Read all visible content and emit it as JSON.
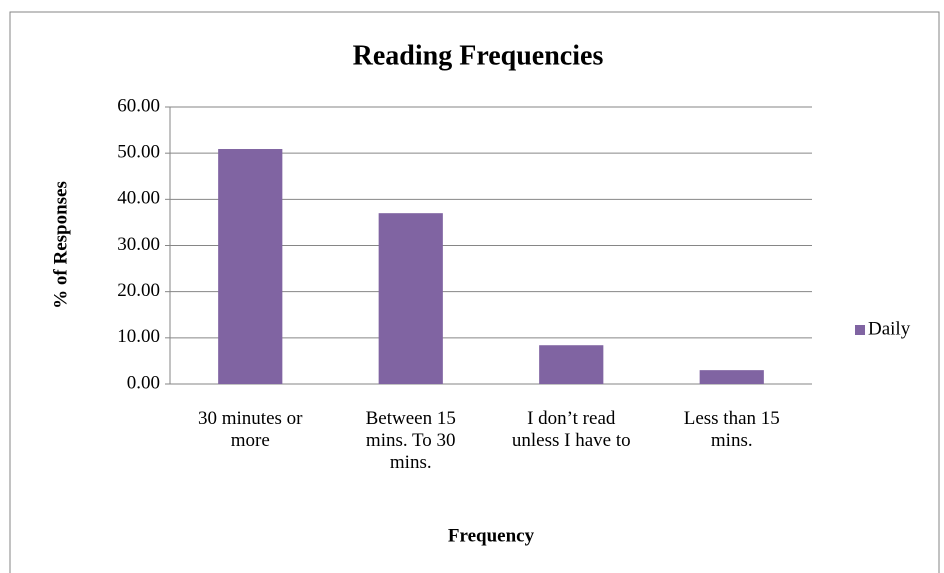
{
  "chart_data": {
    "type": "bar",
    "title": "Reading Frequencies",
    "x_label": "Frequency",
    "y_label": "% of Responses",
    "categories": [
      "30 minutes or more",
      "Between 15 mins. To 30 mins.",
      "I don’t read unless I have to",
      "Less than 15 mins."
    ],
    "series": [
      {
        "name": "Daily",
        "color": "#8064a2",
        "values": [
          50.9,
          37.0,
          8.4,
          3.0
        ]
      }
    ],
    "ylim": [
      0,
      60
    ],
    "yticks": [
      {
        "value": 0,
        "label": "0.00"
      },
      {
        "value": 10,
        "label": "10.00"
      },
      {
        "value": 20,
        "label": "20.00"
      },
      {
        "value": 30,
        "label": "30.00"
      },
      {
        "value": 40,
        "label": "40.00"
      },
      {
        "value": 50,
        "label": "50.00"
      },
      {
        "value": 60,
        "label": "60.00"
      }
    ],
    "grid": true,
    "legend": "right"
  }
}
